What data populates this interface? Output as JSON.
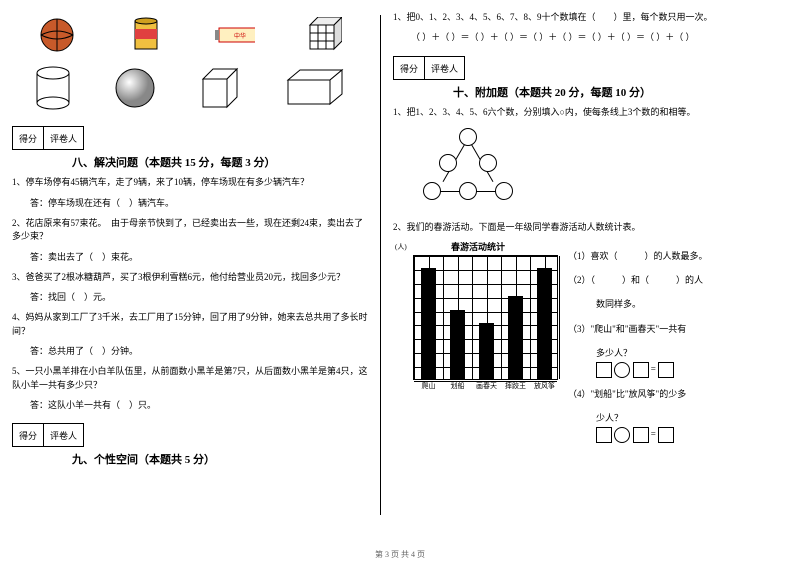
{
  "left": {
    "score_labels": {
      "score": "得分",
      "reviewer": "评卷人"
    },
    "section8": {
      "title": "八、解决问题（本题共 15 分，每题 3 分）",
      "q1": "1、停车场停有45辆汽车，走了9辆，来了10辆，停车场现在有多少辆汽车？",
      "a1": "答：停车场现在还有（　）辆汽车。",
      "q2": "2、花店原来有57束花。　由于母亲节快到了，已经卖出去一些，现在还剩24束，卖出去了多少束？",
      "a2": "答：卖出去了（　）束花。",
      "q3": "3、爸爸买了2根冰糖葫芦，买了3根伊利雪糕6元，他付给营业员20元，找回多少元？",
      "a3": "答：找回（　）元。",
      "q4": "4、妈妈从家到工厂了3千米，去工厂用了15分钟，回了用了9分钟，她来去总共用了多长时间？",
      "a4": "答：总共用了（　）分钟。",
      "q5": "5、一只小黑羊排在小白羊队伍里，从前面数小黑羊是第7只，从后面数小黑羊是第4只，这队小羊一共有多少只？",
      "a5": "答：这队小羊一共有（　）只。"
    },
    "section9": {
      "title": "九、个性空间（本题共 5 分）"
    }
  },
  "right": {
    "q1": "1、把0、1、2、3、4、5、6、7、8、9十个数填在（　　）里，每个数只用一次。",
    "q1_expr": "（ ）＋（ ）＝（ ）＋（ ）＝（ ）＋（ ）＝（ ）＋（ ）＝（ ）＋（ ）",
    "section10": {
      "title": "十、附加题（本题共 20 分，每题 10 分）",
      "q1": "1、把1、2、3、4、5、6六个数，分别填入○内，使每条线上3个数的和相等。",
      "q2": "2、我们的春游活动。下面是一年级同学春游活动人数统计表。"
    },
    "chart": {
      "title": "春游活动统计",
      "y_unit": "(人)",
      "x_labels": [
        "爬山",
        "划船",
        "画春天",
        "摔跤王",
        "放风筝"
      ],
      "values": [
        8,
        5,
        4,
        6,
        8
      ],
      "max": 9,
      "bar_color": "#000000",
      "grid_color": "#000000"
    },
    "sub": {
      "s1": "（1）喜欢（　　　）的人数最多。",
      "s2a": "（2）（　　　）和（　　　）的人",
      "s2b": "数同样多。",
      "s3a": "（3）\"爬山\"和\"画春天\"一共有",
      "s3b": "多少人？",
      "s4a": "（4）\"划船\"比\"放风筝\"的少多",
      "s4b": "少人？"
    }
  },
  "footer": "第 3 页 共 4 页"
}
